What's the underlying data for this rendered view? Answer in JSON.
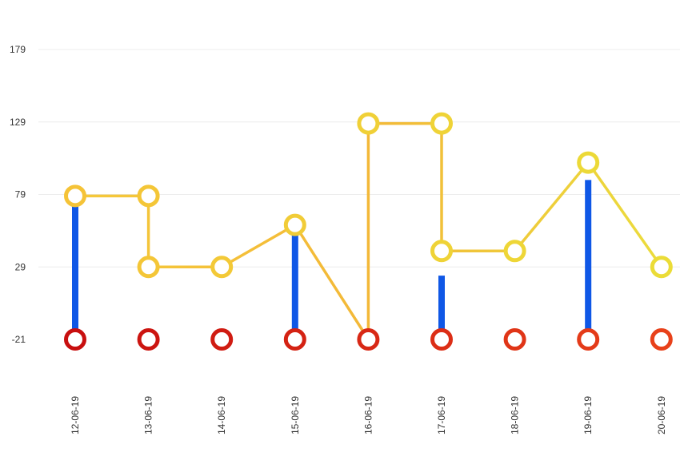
{
  "chart_data": {
    "type": "line",
    "title": "",
    "xlabel": "",
    "ylabel": "",
    "categories": [
      "12-06-19",
      "13-06-19",
      "14-06-19",
      "15-06-19",
      "16-06-19",
      "17-06-19",
      "18-06-19",
      "19-06-19",
      "20-06-19"
    ],
    "y_ticks": [
      -21,
      29,
      79,
      129,
      179
    ],
    "ylim": [
      -21,
      179
    ],
    "grid": true,
    "series": [
      {
        "kind": "step-line",
        "color": "#f2c230",
        "points": [
          {
            "x": "12-06-19",
            "y": 78
          },
          {
            "x": "13-06-19",
            "y": 78
          },
          {
            "x": "13-06-19",
            "y": 29
          },
          {
            "x": "14-06-19",
            "y": 29
          },
          {
            "x": "15-06-19",
            "y": 58
          },
          {
            "x": "16-06-19",
            "y": -21
          },
          {
            "x": "16-06-19",
            "y": 128
          },
          {
            "x": "17-06-19",
            "y": 128
          },
          {
            "x": "17-06-19",
            "y": 40
          },
          {
            "x": "18-06-19",
            "y": 40
          },
          {
            "x": "19-06-19",
            "y": 101
          },
          {
            "x": "20-06-19",
            "y": 29
          }
        ]
      },
      {
        "kind": "line",
        "color": "#d0190f",
        "points": [
          {
            "x": "12-06-19",
            "y": -21
          },
          {
            "x": "13-06-19",
            "y": -21
          },
          {
            "x": "14-06-19",
            "y": -21
          },
          {
            "x": "15-06-19",
            "y": -21
          },
          {
            "x": "16-06-19",
            "y": -21
          },
          {
            "x": "17-06-19",
            "y": -21
          },
          {
            "x": "18-06-19",
            "y": -21
          },
          {
            "x": "19-06-19",
            "y": -21
          },
          {
            "x": "20-06-19",
            "y": -21
          }
        ]
      },
      {
        "kind": "bar",
        "color": "#0f57e6",
        "points": [
          {
            "x": "12-06-19",
            "y": 71
          },
          {
            "x": "15-06-19",
            "y": 52
          },
          {
            "x": "17-06-19",
            "y": 23
          },
          {
            "x": "19-06-19",
            "y": 89
          }
        ]
      }
    ]
  }
}
